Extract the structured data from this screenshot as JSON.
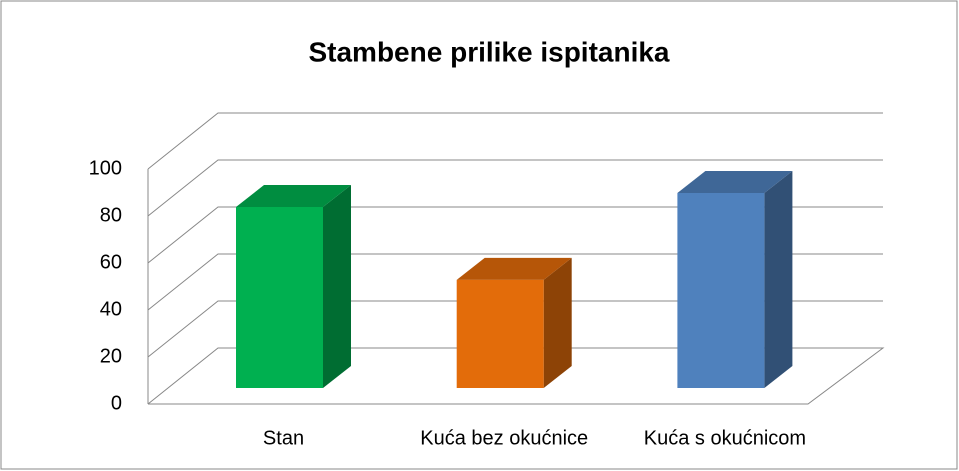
{
  "chart_data": {
    "type": "bar3d",
    "title": "Stambene prilike ispitanika",
    "categories": [
      "Stan",
      "Kuća bez okućnice",
      "Kuća s okućnicom"
    ],
    "values": [
      77,
      46,
      83
    ],
    "colors": [
      "#00b050",
      "#e36c0a",
      "#4f81bd"
    ],
    "ylim": [
      0,
      100
    ],
    "yticks": [
      0,
      20,
      40,
      60,
      80,
      100
    ],
    "grid": true
  }
}
